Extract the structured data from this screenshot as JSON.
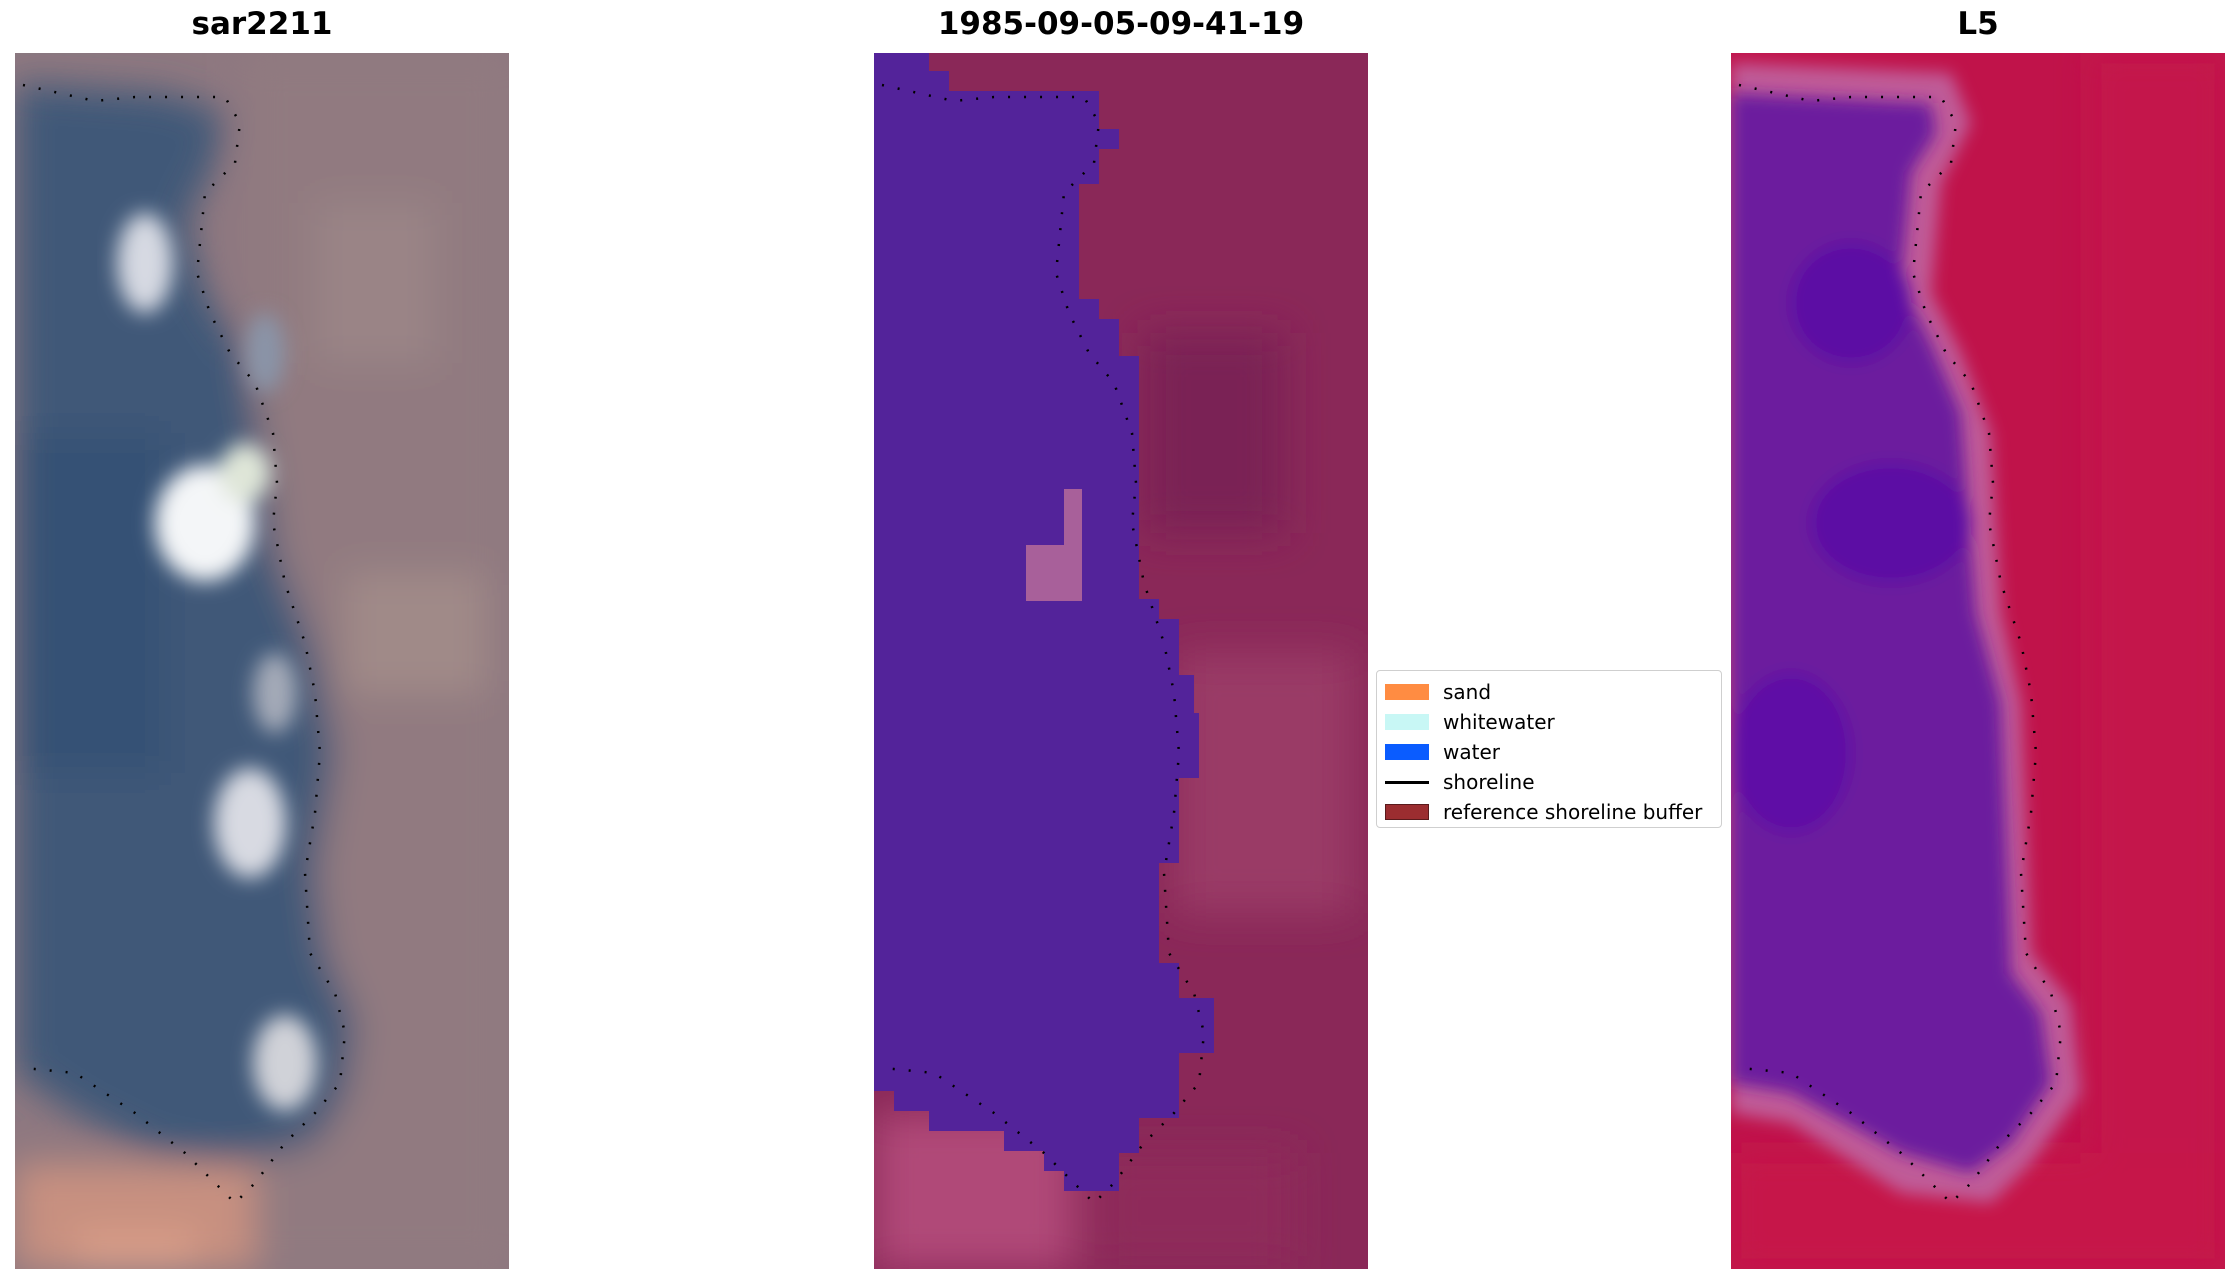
{
  "panels": [
    {
      "id": "sar",
      "title": "sar2211"
    },
    {
      "id": "class",
      "title": "1985-09-05-09-41-19"
    },
    {
      "id": "ndwi",
      "title": "L5"
    }
  ],
  "legend": {
    "items": [
      {
        "label": "sand",
        "color": "#ff8c42",
        "kind": "patch"
      },
      {
        "label": "whitewater",
        "color": "#c8f7f5",
        "kind": "patch"
      },
      {
        "label": "water",
        "color": "#0a5cff",
        "kind": "patch"
      },
      {
        "label": "shoreline",
        "color": "#000000",
        "kind": "line"
      },
      {
        "label": "reference shoreline buffer",
        "color": "#9b2d30",
        "kind": "patch"
      }
    ]
  },
  "colors": {
    "sar_water": "#3f5878",
    "sar_land": "#8e7880",
    "class_water": "#53239a",
    "class_land": "#8a2858",
    "ndwi_water": "#6c1a9e",
    "ndwi_land": "#c0134a"
  }
}
